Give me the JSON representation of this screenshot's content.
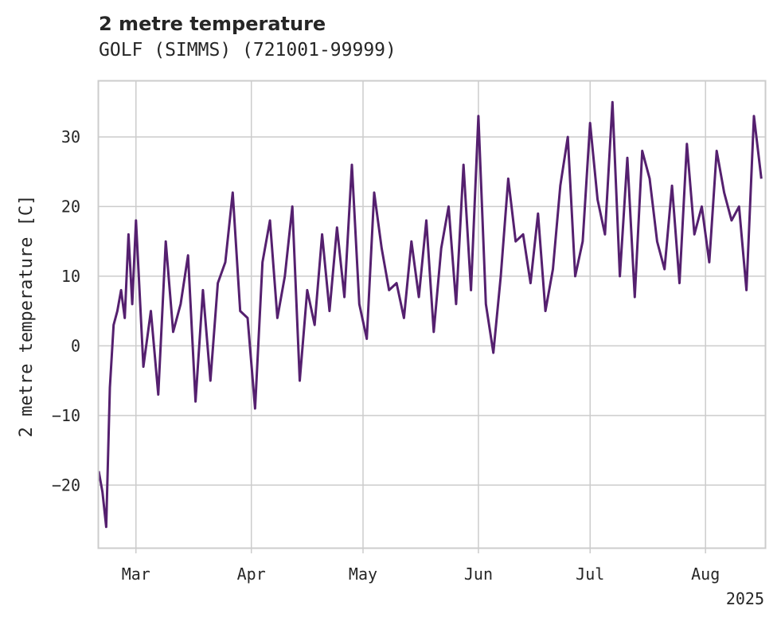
{
  "chart_data": {
    "type": "line",
    "title": "2 metre temperature",
    "subtitle": "GOLF (SIMMS) (721001-99999)",
    "ylabel": "2 metre temperature [C]",
    "xlabel": "",
    "x_range": [
      "2025-02-19",
      "2025-08-17"
    ],
    "ylim": [
      -29,
      38
    ],
    "y_ticks": [
      -20,
      -10,
      0,
      10,
      20,
      30
    ],
    "y_tick_labels": [
      "−20",
      "−10",
      "0",
      "10",
      "20",
      "30"
    ],
    "x_ticks": [
      "2025-03-01",
      "2025-04-01",
      "2025-05-01",
      "2025-06-01",
      "2025-07-01",
      "2025-08-01"
    ],
    "x_tick_labels": [
      "Mar",
      "Apr",
      "May",
      "Jun",
      "Jul",
      "Aug"
    ],
    "x_offset_label": "2025",
    "grid": true,
    "color": "#55206f",
    "series": [
      {
        "x": [
          "2025-02-19",
          "2025-02-20",
          "2025-02-21",
          "2025-02-22",
          "2025-02-23",
          "2025-02-24",
          "2025-02-25",
          "2025-02-26",
          "2025-02-27",
          "2025-02-28",
          "2025-03-01",
          "2025-03-03",
          "2025-03-05",
          "2025-03-07",
          "2025-03-09",
          "2025-03-11",
          "2025-03-13",
          "2025-03-15",
          "2025-03-17",
          "2025-03-19",
          "2025-03-21",
          "2025-03-23",
          "2025-03-25",
          "2025-03-27",
          "2025-03-29",
          "2025-03-31",
          "2025-04-02",
          "2025-04-04",
          "2025-04-06",
          "2025-04-08",
          "2025-04-10",
          "2025-04-12",
          "2025-04-14",
          "2025-04-16",
          "2025-04-18",
          "2025-04-20",
          "2025-04-22",
          "2025-04-24",
          "2025-04-26",
          "2025-04-28",
          "2025-04-30",
          "2025-05-02",
          "2025-05-04",
          "2025-05-06",
          "2025-05-08",
          "2025-05-10",
          "2025-05-12",
          "2025-05-14",
          "2025-05-16",
          "2025-05-18",
          "2025-05-20",
          "2025-05-22",
          "2025-05-24",
          "2025-05-26",
          "2025-05-28",
          "2025-05-30",
          "2025-06-01",
          "2025-06-03",
          "2025-06-05",
          "2025-06-07",
          "2025-06-09",
          "2025-06-11",
          "2025-06-13",
          "2025-06-15",
          "2025-06-17",
          "2025-06-19",
          "2025-06-21",
          "2025-06-23",
          "2025-06-25",
          "2025-06-27",
          "2025-06-29",
          "2025-07-01",
          "2025-07-03",
          "2025-07-05",
          "2025-07-07",
          "2025-07-09",
          "2025-07-11",
          "2025-07-13",
          "2025-07-15",
          "2025-07-17",
          "2025-07-19",
          "2025-07-21",
          "2025-07-23",
          "2025-07-25",
          "2025-07-27",
          "2025-07-29",
          "2025-07-31",
          "2025-08-02",
          "2025-08-04",
          "2025-08-06",
          "2025-08-08",
          "2025-08-10",
          "2025-08-12",
          "2025-08-14",
          "2025-08-16"
        ],
        "y": [
          -18,
          -21,
          -26,
          -6,
          3,
          5,
          8,
          4,
          16,
          6,
          18,
          -3,
          5,
          -7,
          15,
          2,
          6,
          13,
          -8,
          8,
          -5,
          9,
          12,
          22,
          5,
          4,
          -9,
          12,
          18,
          4,
          10,
          20,
          -5,
          8,
          3,
          16,
          5,
          17,
          7,
          26,
          6,
          1,
          22,
          14,
          8,
          9,
          4,
          15,
          7,
          18,
          2,
          14,
          20,
          6,
          26,
          8,
          33,
          6,
          -1,
          10,
          24,
          15,
          16,
          9,
          19,
          5,
          11,
          23,
          30,
          10,
          15,
          32,
          21,
          16,
          35,
          10,
          27,
          7,
          28,
          24,
          15,
          11,
          23,
          9,
          29,
          16,
          20,
          12,
          28,
          22,
          18,
          20,
          8,
          33,
          24
        ]
      }
    ]
  }
}
